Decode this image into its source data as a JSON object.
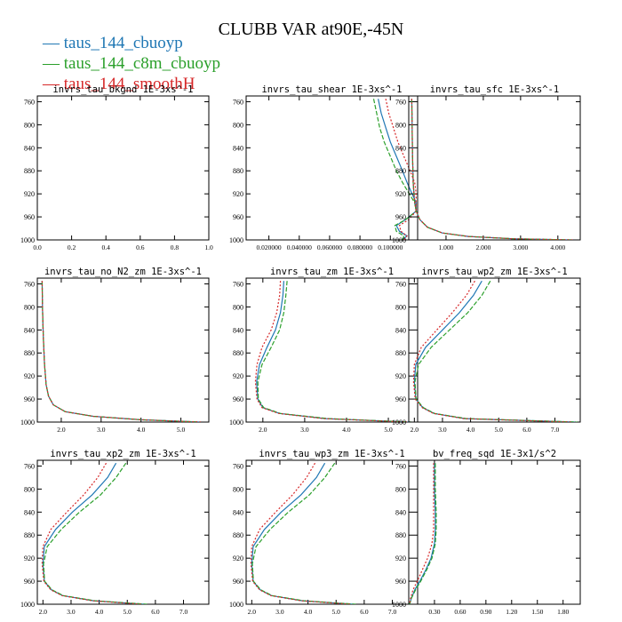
{
  "page_title": "CLUBB VAR at90E,-45N",
  "legend": [
    {
      "label": "taus_144_cbuoyp",
      "color": "#1f77b4"
    },
    {
      "label": "taus_144_c8m_cbuoyp",
      "color": "#2ca02c"
    },
    {
      "label": "taus_144_smoothH",
      "color": "#d62728"
    }
  ],
  "chart_data": [
    {
      "type": "line",
      "title": "invrs_tau_bkgnd  1E-3xs^-1",
      "ylim": [
        1000,
        750
      ],
      "yticks": [
        "760",
        "800",
        "840",
        "880",
        "920",
        "960",
        "1000"
      ],
      "xlim": [
        0,
        1
      ],
      "xticks": [
        0,
        0.2,
        0.4,
        0.6,
        0.8,
        1.0
      ],
      "xticklabels": [
        "0.0",
        "0.2",
        "0.4",
        "0.6",
        "0.8",
        "1.0"
      ],
      "series": []
    },
    {
      "type": "line",
      "title": "invrs_tau_shear  1E-3xs^-1",
      "ylim": [
        1000,
        750
      ],
      "yticks": [
        "760",
        "800",
        "840",
        "880",
        "920",
        "960",
        "1000"
      ],
      "xlim": [
        0.005,
        0.118
      ],
      "xticks": [
        0.02,
        0.04,
        0.06,
        0.08,
        0.1
      ],
      "xticklabels": [
        "0.020000",
        "0.040000",
        "0.060000",
        "0.080000",
        "0.100000"
      ],
      "series": [
        {
          "name": "taus_144_cbuoyp",
          "x": [
            0.092,
            0.094,
            0.097,
            0.1,
            0.104,
            0.108,
            0.111,
            0.114,
            0.117,
            0.117,
            0.11,
            0.104,
            0.106,
            0.111,
            0.108
          ],
          "y": [
            755,
            780,
            805,
            830,
            855,
            880,
            900,
            918,
            935,
            950,
            965,
            975,
            985,
            993,
            1000
          ]
        },
        {
          "name": "taus_144_c8m_cbuoyp",
          "x": [
            0.089,
            0.091,
            0.093,
            0.096,
            0.1,
            0.104,
            0.108,
            0.112,
            0.116,
            0.117,
            0.11,
            0.103,
            0.104,
            0.109,
            0.108
          ],
          "y": [
            755,
            780,
            805,
            830,
            855,
            880,
            900,
            918,
            935,
            950,
            965,
            975,
            985,
            993,
            1000
          ]
        },
        {
          "name": "taus_144_smoothH",
          "x": [
            0.097,
            0.099,
            0.102,
            0.105,
            0.109,
            0.113,
            0.116,
            0.117,
            0.117,
            0.117,
            0.112,
            0.106,
            0.107,
            0.111,
            0.109
          ],
          "y": [
            755,
            780,
            805,
            830,
            855,
            880,
            900,
            918,
            935,
            950,
            965,
            975,
            985,
            993,
            1000
          ]
        }
      ]
    },
    {
      "type": "line",
      "title": "invrs_tau_sfc  1E-3xs^-1",
      "ylim": [
        1000,
        750
      ],
      "yticks": [
        "760",
        "800",
        "840",
        "880",
        "920",
        "960",
        "1000"
      ],
      "xlim": [
        0,
        4.6
      ],
      "xticks": [
        1,
        2,
        3,
        4
      ],
      "xticklabels": [
        "1.000",
        "2.000",
        "3.000",
        "4.000"
      ],
      "series": [
        {
          "name": "taus_144_cbuoyp",
          "x": [
            0.08,
            0.09,
            0.1,
            0.12,
            0.15,
            0.2,
            0.3,
            0.5,
            0.9,
            1.6,
            2.8,
            4.4
          ],
          "y": [
            755,
            800,
            850,
            900,
            930,
            950,
            965,
            978,
            988,
            994,
            998,
            1000
          ]
        },
        {
          "name": "taus_144_c8m_cbuoyp",
          "x": [
            0.08,
            0.09,
            0.1,
            0.12,
            0.15,
            0.2,
            0.3,
            0.5,
            0.9,
            1.6,
            2.8,
            4.4
          ],
          "y": [
            755,
            800,
            850,
            900,
            930,
            950,
            965,
            978,
            988,
            994,
            998,
            1000
          ]
        },
        {
          "name": "taus_144_smoothH",
          "x": [
            0.08,
            0.09,
            0.1,
            0.12,
            0.15,
            0.2,
            0.3,
            0.5,
            0.9,
            1.6,
            2.8,
            4.4
          ],
          "y": [
            755,
            800,
            850,
            900,
            930,
            950,
            965,
            978,
            988,
            994,
            998,
            1000
          ]
        }
      ]
    },
    {
      "type": "line",
      "title": "invrs_tau_no_N2_zm  1E-3xs^-1",
      "ylim": [
        1000,
        750
      ],
      "yticks": [
        "760",
        "800",
        "840",
        "880",
        "920",
        "960",
        "1000"
      ],
      "xlim": [
        1.4,
        5.7
      ],
      "xticks": [
        2,
        3,
        4,
        5
      ],
      "xticklabels": [
        "2.0",
        "3.0",
        "4.0",
        "5.0"
      ],
      "series": [
        {
          "name": "taus_144_cbuoyp",
          "x": [
            1.52,
            1.53,
            1.55,
            1.58,
            1.62,
            1.68,
            1.8,
            2.1,
            2.8,
            4.0,
            5.5
          ],
          "y": [
            755,
            800,
            850,
            900,
            935,
            955,
            970,
            982,
            990,
            996,
            1000
          ]
        },
        {
          "name": "taus_144_c8m_cbuoyp",
          "x": [
            1.52,
            1.53,
            1.55,
            1.58,
            1.62,
            1.68,
            1.8,
            2.1,
            2.8,
            4.0,
            5.5
          ],
          "y": [
            755,
            800,
            850,
            900,
            935,
            955,
            970,
            982,
            990,
            996,
            1000
          ]
        },
        {
          "name": "taus_144_smoothH",
          "x": [
            1.52,
            1.53,
            1.55,
            1.58,
            1.62,
            1.68,
            1.8,
            2.1,
            2.8,
            4.0,
            5.5
          ],
          "y": [
            755,
            800,
            850,
            900,
            935,
            955,
            970,
            982,
            990,
            996,
            1000
          ]
        }
      ]
    },
    {
      "type": "line",
      "title": "invrs_tau_zm  1E-3xs^-1",
      "ylim": [
        1000,
        750
      ],
      "yticks": [
        "760",
        "800",
        "840",
        "880",
        "920",
        "960",
        "1000"
      ],
      "xlim": [
        1.6,
        5.7
      ],
      "xticks": [
        2,
        3,
        4,
        5
      ],
      "xticklabels": [
        "2.0",
        "3.0",
        "4.0",
        "5.0"
      ],
      "series": [
        {
          "name": "taus_144_cbuoyp",
          "x": [
            2.5,
            2.48,
            2.42,
            2.3,
            2.1,
            1.92,
            1.85,
            1.88,
            2.0,
            2.4,
            3.5,
            5.5
          ],
          "y": [
            755,
            780,
            810,
            840,
            870,
            900,
            930,
            960,
            975,
            985,
            994,
            1000
          ]
        },
        {
          "name": "taus_144_c8m_cbuoyp",
          "x": [
            2.58,
            2.55,
            2.5,
            2.4,
            2.2,
            1.98,
            1.88,
            1.89,
            2.02,
            2.42,
            3.55,
            5.55
          ],
          "y": [
            755,
            780,
            810,
            840,
            870,
            900,
            930,
            960,
            975,
            985,
            994,
            1000
          ]
        },
        {
          "name": "taus_144_smoothH",
          "x": [
            2.42,
            2.4,
            2.33,
            2.2,
            1.98,
            1.86,
            1.82,
            1.86,
            1.98,
            2.38,
            3.45,
            5.45
          ],
          "y": [
            755,
            780,
            810,
            840,
            870,
            900,
            930,
            960,
            975,
            985,
            994,
            1000
          ]
        }
      ]
    },
    {
      "type": "line",
      "title": "invrs_tau_wp2_zm  1E-3xs^-1",
      "ylim": [
        1000,
        750
      ],
      "yticks": [
        "760",
        "800",
        "840",
        "880",
        "920",
        "960",
        "1000"
      ],
      "xlim": [
        1.8,
        7.9
      ],
      "xticks": [
        2,
        3,
        4,
        5,
        6,
        7
      ],
      "xticklabels": [
        "2.0",
        "3.0",
        "4.0",
        "5.0",
        "6.0",
        "7.0"
      ],
      "series": [
        {
          "name": "taus_144_cbuoyp",
          "x": [
            4.4,
            4.1,
            3.6,
            3.0,
            2.4,
            2.05,
            2.0,
            2.05,
            2.3,
            2.7,
            3.8,
            7.7
          ],
          "y": [
            755,
            780,
            810,
            840,
            870,
            900,
            930,
            960,
            975,
            985,
            994,
            1000
          ]
        },
        {
          "name": "taus_144_c8m_cbuoyp",
          "x": [
            4.7,
            4.4,
            3.9,
            3.25,
            2.6,
            2.15,
            2.02,
            2.06,
            2.32,
            2.72,
            3.85,
            7.8
          ],
          "y": [
            755,
            780,
            810,
            840,
            870,
            900,
            930,
            960,
            975,
            985,
            994,
            1000
          ]
        },
        {
          "name": "taus_144_smoothH",
          "x": [
            4.15,
            3.85,
            3.35,
            2.8,
            2.25,
            2.0,
            1.97,
            2.03,
            2.28,
            2.68,
            3.75,
            7.6
          ],
          "y": [
            755,
            780,
            810,
            840,
            870,
            900,
            930,
            960,
            975,
            985,
            994,
            1000
          ]
        }
      ]
    },
    {
      "type": "line",
      "title": "invrs_tau_xp2_zm  1E-3xs^-1",
      "ylim": [
        1000,
        750
      ],
      "yticks": [
        "760",
        "800",
        "840",
        "880",
        "920",
        "960",
        "1000"
      ],
      "xlim": [
        1.8,
        7.9
      ],
      "xticks": [
        2,
        3,
        4,
        5,
        6,
        7
      ],
      "xticklabels": [
        "2.0",
        "3.0",
        "4.0",
        "5.0",
        "6.0",
        "7.0"
      ],
      "series": [
        {
          "name": "taus_144_cbuoyp",
          "x": [
            4.6,
            4.3,
            3.75,
            3.05,
            2.45,
            2.05,
            2.0,
            2.05,
            2.3,
            2.7,
            3.8,
            5.6
          ],
          "y": [
            755,
            780,
            810,
            840,
            870,
            900,
            930,
            960,
            975,
            985,
            994,
            1000
          ]
        },
        {
          "name": "taus_144_c8m_cbuoyp",
          "x": [
            4.95,
            4.6,
            4.05,
            3.3,
            2.65,
            2.15,
            2.02,
            2.06,
            2.32,
            2.72,
            3.85,
            5.7
          ],
          "y": [
            755,
            780,
            810,
            840,
            870,
            900,
            930,
            960,
            975,
            985,
            994,
            1000
          ]
        },
        {
          "name": "taus_144_smoothH",
          "x": [
            4.25,
            3.95,
            3.45,
            2.85,
            2.28,
            2.0,
            1.97,
            2.03,
            2.28,
            2.68,
            3.75,
            5.5
          ],
          "y": [
            755,
            780,
            810,
            840,
            870,
            900,
            930,
            960,
            975,
            985,
            994,
            1000
          ]
        }
      ]
    },
    {
      "type": "line",
      "title": "invrs_tau_wp3_zm  1E-3xs^-1",
      "ylim": [
        1000,
        750
      ],
      "yticks": [
        "760",
        "800",
        "840",
        "880",
        "920",
        "960",
        "1000"
      ],
      "xlim": [
        1.8,
        7.9
      ],
      "xticks": [
        2,
        3,
        4,
        5,
        6,
        7
      ],
      "xticklabels": [
        "2.0",
        "3.0",
        "4.0",
        "5.0",
        "6.0",
        "7.0"
      ],
      "series": [
        {
          "name": "taus_144_cbuoyp",
          "x": [
            4.6,
            4.3,
            3.75,
            3.05,
            2.45,
            2.05,
            2.0,
            2.05,
            2.3,
            2.7,
            3.8,
            5.6
          ],
          "y": [
            755,
            780,
            810,
            840,
            870,
            900,
            930,
            960,
            975,
            985,
            994,
            1000
          ]
        },
        {
          "name": "taus_144_c8m_cbuoyp",
          "x": [
            4.95,
            4.6,
            4.05,
            3.3,
            2.65,
            2.15,
            2.02,
            2.06,
            2.32,
            2.72,
            3.85,
            5.7
          ],
          "y": [
            755,
            780,
            810,
            840,
            870,
            900,
            930,
            960,
            975,
            985,
            994,
            1000
          ]
        },
        {
          "name": "taus_144_smoothH",
          "x": [
            4.25,
            3.95,
            3.45,
            2.85,
            2.28,
            2.0,
            1.97,
            2.03,
            2.28,
            2.68,
            3.75,
            5.5
          ],
          "y": [
            755,
            780,
            810,
            840,
            870,
            900,
            930,
            960,
            975,
            985,
            994,
            1000
          ]
        }
      ]
    },
    {
      "type": "line",
      "title": "bv_freq_sqd  1E-3x1/s^2",
      "ylim": [
        1000,
        750
      ],
      "yticks": [
        "760",
        "800",
        "840",
        "880",
        "920",
        "960",
        "1000"
      ],
      "xlim": [
        0,
        2.0
      ],
      "xticks": [
        0.3,
        0.6,
        0.9,
        1.2,
        1.5,
        1.8
      ],
      "xticklabels": [
        "0.30",
        "0.60",
        "0.90",
        "1.20",
        "1.50",
        "1.80"
      ],
      "series": [
        {
          "name": "taus_144_cbuoyp",
          "x": [
            0.3,
            0.3,
            0.31,
            0.31,
            0.3,
            0.26,
            0.2,
            0.13,
            0.07,
            0.03,
            0.01
          ],
          "y": [
            755,
            800,
            840,
            870,
            895,
            920,
            940,
            960,
            975,
            990,
            1000
          ]
        },
        {
          "name": "taus_144_c8m_cbuoyp",
          "x": [
            0.31,
            0.31,
            0.32,
            0.32,
            0.31,
            0.27,
            0.21,
            0.14,
            0.08,
            0.03,
            0.01
          ],
          "y": [
            755,
            800,
            840,
            870,
            895,
            920,
            940,
            960,
            975,
            990,
            1000
          ]
        },
        {
          "name": "taus_144_smoothH",
          "x": [
            0.29,
            0.29,
            0.29,
            0.29,
            0.27,
            0.22,
            0.16,
            0.1,
            0.05,
            0.02,
            0.01
          ],
          "y": [
            755,
            800,
            840,
            870,
            895,
            920,
            940,
            960,
            975,
            990,
            1000
          ]
        }
      ]
    }
  ]
}
